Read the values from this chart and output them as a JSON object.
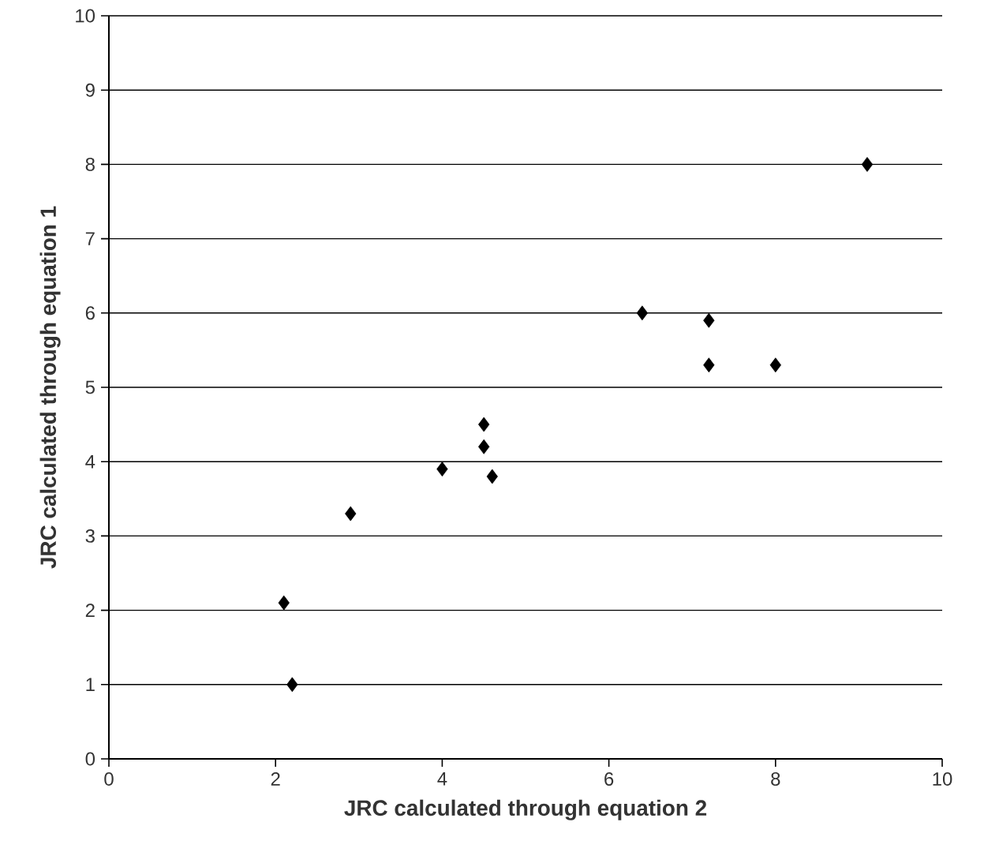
{
  "chart_data": {
    "type": "scatter",
    "xlabel": "JRC calculated through equation 2",
    "ylabel": "JRC calculated through equation 1",
    "x": [
      2.1,
      2.2,
      2.9,
      4.0,
      4.5,
      4.5,
      4.6,
      6.4,
      7.2,
      7.2,
      8.0,
      9.1
    ],
    "values": [
      2.1,
      1.0,
      3.3,
      3.9,
      4.5,
      4.2,
      3.8,
      6.0,
      5.9,
      5.3,
      5.3,
      8.0
    ],
    "color": "#000000",
    "marker": "diamond",
    "xlim": [
      0,
      10
    ],
    "ylim": [
      0,
      10
    ],
    "xticks": [
      0,
      2,
      4,
      6,
      8,
      10
    ],
    "yticks": [
      0,
      1,
      2,
      3,
      4,
      5,
      6,
      7,
      8,
      9,
      10
    ],
    "grid": "y"
  }
}
